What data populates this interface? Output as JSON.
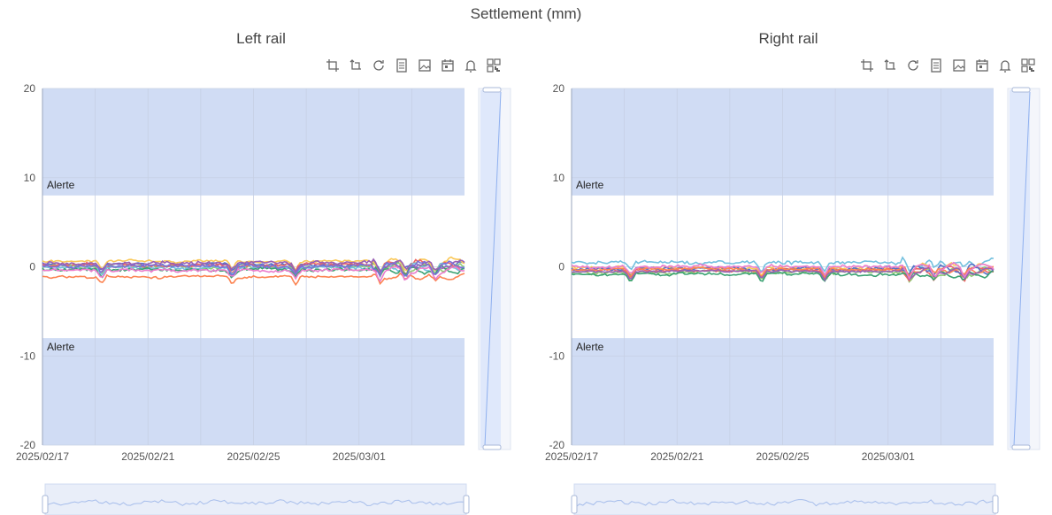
{
  "page": {
    "title": "Settlement (mm)"
  },
  "icons": [
    "crop-icon",
    "undo-zoom-icon",
    "refresh-icon",
    "data-view-icon",
    "image-export-icon",
    "calendar-icon",
    "bell-icon",
    "qr-icon"
  ],
  "colors": {
    "alert_band": "#d0dcf4",
    "grid": "#d5dae3",
    "slider_fill": "#dde7fb",
    "series": [
      "#5470c6",
      "#91cc75",
      "#fac858",
      "#ee6666",
      "#73c0de",
      "#3ba272",
      "#fc8452",
      "#9a60b4",
      "#ea7ccc",
      "#7b6fd6"
    ]
  },
  "chart_data": [
    {
      "type": "line",
      "subtitle": "Left rail",
      "ylim": [
        -20,
        20
      ],
      "yticks": [
        20,
        10,
        0,
        -10,
        -20
      ],
      "x_range": [
        "2025/02/17",
        "2025/03/05"
      ],
      "xticks": [
        "2025/02/17",
        "2025/02/21",
        "2025/02/25",
        "2025/03/01"
      ],
      "alert_bands": [
        {
          "label": "Alerte",
          "from": 8,
          "to": 20
        },
        {
          "label": "Alerte",
          "from": -20,
          "to": -8
        }
      ],
      "series": [
        {
          "color": "#5470c6",
          "base": 0.3,
          "noise": 0.25
        },
        {
          "color": "#91cc75",
          "base": 0.0,
          "noise": 0.3
        },
        {
          "color": "#fac858",
          "base": 0.6,
          "noise": 0.2
        },
        {
          "color": "#ee6666",
          "base": 0.2,
          "noise": 0.35
        },
        {
          "color": "#73c0de",
          "base": -0.1,
          "noise": 0.25
        },
        {
          "color": "#3ba272",
          "base": -0.3,
          "noise": 0.3
        },
        {
          "color": "#fc8452",
          "base": -1.1,
          "noise": 0.2
        },
        {
          "color": "#9a60b4",
          "base": 0.4,
          "noise": 0.3
        },
        {
          "color": "#ea7ccc",
          "base": -0.4,
          "noise": 0.25
        },
        {
          "color": "#7b6fd6",
          "base": 0.1,
          "noise": 0.3
        }
      ]
    },
    {
      "type": "line",
      "subtitle": "Right rail",
      "ylim": [
        -20,
        20
      ],
      "yticks": [
        20,
        10,
        0,
        -10,
        -20
      ],
      "x_range": [
        "2025/02/17",
        "2025/03/05"
      ],
      "xticks": [
        "2025/02/17",
        "2025/02/21",
        "2025/02/25",
        "2025/03/01"
      ],
      "alert_bands": [
        {
          "label": "Alerte",
          "from": 8,
          "to": 20
        },
        {
          "label": "Alerte",
          "from": -20,
          "to": -8
        }
      ],
      "series": [
        {
          "color": "#73c0de",
          "base": 0.5,
          "noise": 0.3
        },
        {
          "color": "#91cc75",
          "base": -0.6,
          "noise": 0.3
        },
        {
          "color": "#fac858",
          "base": -0.1,
          "noise": 0.25
        },
        {
          "color": "#ee6666",
          "base": -0.4,
          "noise": 0.25
        },
        {
          "color": "#5470c6",
          "base": -0.2,
          "noise": 0.3
        },
        {
          "color": "#3ba272",
          "base": -0.8,
          "noise": 0.25
        },
        {
          "color": "#fc8452",
          "base": -0.3,
          "noise": 0.2
        },
        {
          "color": "#9a60b4",
          "base": -0.5,
          "noise": 0.2
        },
        {
          "color": "#ea7ccc",
          "base": 0.0,
          "noise": 0.25
        }
      ]
    }
  ]
}
